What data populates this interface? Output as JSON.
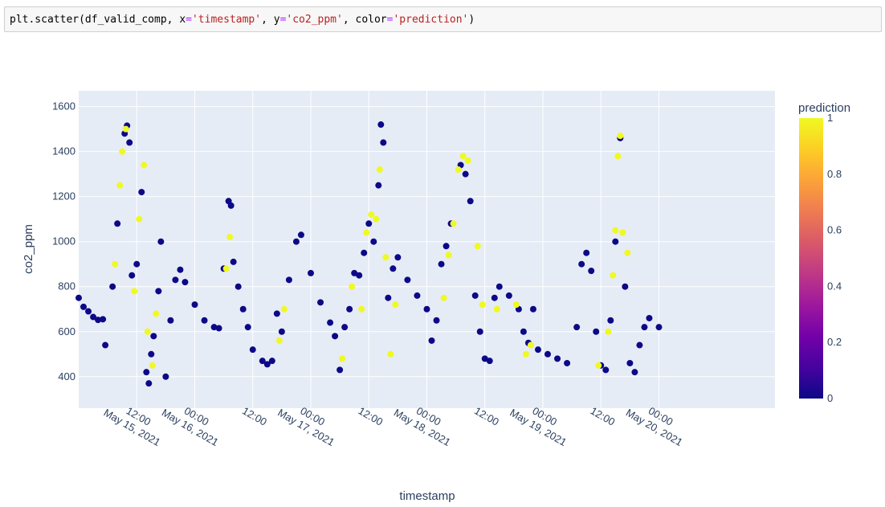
{
  "code_cell": {
    "tokens": [
      {
        "t": "plt.scatter(df_valid_comp, x",
        "c": "plain"
      },
      {
        "t": "=",
        "c": "op"
      },
      {
        "t": "'timestamp'",
        "c": "str"
      },
      {
        "t": ", y",
        "c": "plain"
      },
      {
        "t": "=",
        "c": "op"
      },
      {
        "t": "'co2_ppm'",
        "c": "str"
      },
      {
        "t": ", color",
        "c": "plain"
      },
      {
        "t": "=",
        "c": "op"
      },
      {
        "t": "'prediction'",
        "c": "str"
      },
      {
        "t": ")",
        "c": "plain"
      }
    ]
  },
  "chart_data": {
    "type": "scatter",
    "xlabel": "timestamp",
    "ylabel": "co2_ppm",
    "xlim": [
      "2021-05-14 00:00",
      "2021-05-20 00:00"
    ],
    "ylim": [
      260,
      1670
    ],
    "y_ticks": [
      400,
      600,
      800,
      1000,
      1200,
      1400,
      1600
    ],
    "x_ticks": [
      {
        "x": "2021-05-14 12:00",
        "line1": "12:00",
        "line2": "May 15, 2021"
      },
      {
        "x": "2021-05-15 00:00",
        "line1": "00:00",
        "line2": "May 16, 2021"
      },
      {
        "x": "2021-05-15 12:00",
        "line1": "12:00",
        "line2": ""
      },
      {
        "x": "2021-05-16 00:00",
        "line1": "00:00",
        "line2": "May 17, 2021"
      },
      {
        "x": "2021-05-16 12:00",
        "line1": "12:00",
        "line2": ""
      },
      {
        "x": "2021-05-17 00:00",
        "line1": "00:00",
        "line2": "May 18, 2021"
      },
      {
        "x": "2021-05-17 12:00",
        "line1": "12:00",
        "line2": ""
      },
      {
        "x": "2021-05-18 00:00",
        "line1": "00:00",
        "line2": "May 19, 2021"
      },
      {
        "x": "2021-05-18 12:00",
        "line1": "12:00",
        "line2": ""
      },
      {
        "x": "2021-05-19 00:00",
        "line1": "00:00",
        "line2": "May 20, 2021"
      }
    ],
    "grid": true,
    "colorbar": {
      "title": "prediction",
      "range": [
        0,
        1
      ],
      "ticks": [
        "0",
        "0.2",
        "0.4",
        "0.6",
        "0.8",
        "1"
      ],
      "low_color": "#0d0887",
      "high_color": "#f0f921"
    },
    "colors": {
      "plot_bg": "#e5ecf6",
      "grid": "#ffffff",
      "text": "#2a3f5f",
      "prediction_0": "#0d0887",
      "prediction_1": "#f0f921"
    },
    "series": [
      {
        "prediction": 0,
        "points": [
          [
            "2021-05-14 00:00",
            750
          ],
          [
            "2021-05-14 01:00",
            710
          ],
          [
            "2021-05-14 02:00",
            690
          ],
          [
            "2021-05-14 03:00",
            665
          ],
          [
            "2021-05-14 04:00",
            652
          ],
          [
            "2021-05-14 05:00",
            655
          ],
          [
            "2021-05-14 05:30",
            540
          ],
          [
            "2021-05-14 07:00",
            800
          ],
          [
            "2021-05-14 08:00",
            1080
          ],
          [
            "2021-05-14 09:30",
            1480
          ],
          [
            "2021-05-14 10:00",
            1515
          ],
          [
            "2021-05-14 10:30",
            1440
          ],
          [
            "2021-05-14 11:00",
            850
          ],
          [
            "2021-05-14 12:00",
            900
          ],
          [
            "2021-05-14 13:00",
            1220
          ],
          [
            "2021-05-14 14:00",
            420
          ],
          [
            "2021-05-14 14:30",
            370
          ],
          [
            "2021-05-14 15:00",
            500
          ],
          [
            "2021-05-14 15:30",
            580
          ],
          [
            "2021-05-14 16:30",
            780
          ],
          [
            "2021-05-14 17:00",
            1000
          ],
          [
            "2021-05-14 18:00",
            400
          ],
          [
            "2021-05-14 19:00",
            650
          ],
          [
            "2021-05-14 20:00",
            830
          ],
          [
            "2021-05-14 21:00",
            875
          ],
          [
            "2021-05-14 22:00",
            820
          ],
          [
            "2021-05-15 00:00",
            720
          ],
          [
            "2021-05-15 02:00",
            650
          ],
          [
            "2021-05-15 04:00",
            620
          ],
          [
            "2021-05-15 05:00",
            615
          ],
          [
            "2021-05-15 06:00",
            880
          ],
          [
            "2021-05-15 07:00",
            1180
          ],
          [
            "2021-05-15 07:30",
            1160
          ],
          [
            "2021-05-15 08:00",
            910
          ],
          [
            "2021-05-15 09:00",
            800
          ],
          [
            "2021-05-15 10:00",
            700
          ],
          [
            "2021-05-15 11:00",
            620
          ],
          [
            "2021-05-15 12:00",
            520
          ],
          [
            "2021-05-15 14:00",
            470
          ],
          [
            "2021-05-15 15:00",
            455
          ],
          [
            "2021-05-15 16:00",
            470
          ],
          [
            "2021-05-15 17:00",
            680
          ],
          [
            "2021-05-15 18:00",
            600
          ],
          [
            "2021-05-15 19:30",
            830
          ],
          [
            "2021-05-15 21:00",
            1000
          ],
          [
            "2021-05-15 22:00",
            1030
          ],
          [
            "2021-05-16 00:00",
            860
          ],
          [
            "2021-05-16 02:00",
            730
          ],
          [
            "2021-05-16 04:00",
            640
          ],
          [
            "2021-05-16 05:00",
            580
          ],
          [
            "2021-05-16 06:00",
            430
          ],
          [
            "2021-05-16 07:00",
            620
          ],
          [
            "2021-05-16 08:00",
            700
          ],
          [
            "2021-05-16 09:00",
            860
          ],
          [
            "2021-05-16 10:00",
            850
          ],
          [
            "2021-05-16 11:00",
            950
          ],
          [
            "2021-05-16 12:00",
            1080
          ],
          [
            "2021-05-16 13:00",
            1000
          ],
          [
            "2021-05-16 14:00",
            1250
          ],
          [
            "2021-05-16 14:30",
            1520
          ],
          [
            "2021-05-16 15:00",
            1440
          ],
          [
            "2021-05-16 16:00",
            750
          ],
          [
            "2021-05-16 17:00",
            880
          ],
          [
            "2021-05-16 18:00",
            930
          ],
          [
            "2021-05-16 20:00",
            830
          ],
          [
            "2021-05-16 22:00",
            760
          ],
          [
            "2021-05-17 00:00",
            700
          ],
          [
            "2021-05-17 01:00",
            560
          ],
          [
            "2021-05-17 02:00",
            650
          ],
          [
            "2021-05-17 03:00",
            900
          ],
          [
            "2021-05-17 04:00",
            980
          ],
          [
            "2021-05-17 05:00",
            1080
          ],
          [
            "2021-05-17 07:00",
            1340
          ],
          [
            "2021-05-17 08:00",
            1300
          ],
          [
            "2021-05-17 09:00",
            1180
          ],
          [
            "2021-05-17 10:00",
            760
          ],
          [
            "2021-05-17 11:00",
            600
          ],
          [
            "2021-05-17 12:00",
            480
          ],
          [
            "2021-05-17 13:00",
            470
          ],
          [
            "2021-05-17 14:00",
            750
          ],
          [
            "2021-05-17 15:00",
            800
          ],
          [
            "2021-05-17 17:00",
            760
          ],
          [
            "2021-05-17 19:00",
            700
          ],
          [
            "2021-05-17 20:00",
            600
          ],
          [
            "2021-05-17 21:00",
            550
          ],
          [
            "2021-05-17 22:00",
            700
          ],
          [
            "2021-05-17 23:00",
            520
          ],
          [
            "2021-05-18 01:00",
            500
          ],
          [
            "2021-05-18 03:00",
            480
          ],
          [
            "2021-05-18 05:00",
            460
          ],
          [
            "2021-05-18 07:00",
            620
          ],
          [
            "2021-05-18 08:00",
            900
          ],
          [
            "2021-05-18 09:00",
            950
          ],
          [
            "2021-05-18 10:00",
            870
          ],
          [
            "2021-05-18 11:00",
            600
          ],
          [
            "2021-05-18 12:00",
            450
          ],
          [
            "2021-05-18 13:00",
            430
          ],
          [
            "2021-05-18 14:00",
            650
          ],
          [
            "2021-05-18 15:00",
            1000
          ],
          [
            "2021-05-18 16:00",
            1460
          ],
          [
            "2021-05-18 17:00",
            800
          ],
          [
            "2021-05-18 18:00",
            460
          ],
          [
            "2021-05-18 19:00",
            420
          ],
          [
            "2021-05-18 20:00",
            540
          ],
          [
            "2021-05-18 21:00",
            620
          ],
          [
            "2021-05-18 22:00",
            660
          ],
          [
            "2021-05-19 00:00",
            620
          ]
        ]
      },
      {
        "prediction": 1,
        "points": [
          [
            "2021-05-14 07:30",
            900
          ],
          [
            "2021-05-14 08:30",
            1250
          ],
          [
            "2021-05-14 09:00",
            1400
          ],
          [
            "2021-05-14 09:45",
            1500
          ],
          [
            "2021-05-14 11:30",
            780
          ],
          [
            "2021-05-14 12:30",
            1100
          ],
          [
            "2021-05-14 13:30",
            1340
          ],
          [
            "2021-05-14 14:15",
            600
          ],
          [
            "2021-05-14 15:15",
            450
          ],
          [
            "2021-05-14 16:00",
            680
          ],
          [
            "2021-05-15 06:30",
            880
          ],
          [
            "2021-05-15 07:15",
            1020
          ],
          [
            "2021-05-15 17:30",
            560
          ],
          [
            "2021-05-15 18:30",
            700
          ],
          [
            "2021-05-16 06:30",
            480
          ],
          [
            "2021-05-16 08:30",
            800
          ],
          [
            "2021-05-16 10:30",
            700
          ],
          [
            "2021-05-16 11:30",
            1040
          ],
          [
            "2021-05-16 12:30",
            1120
          ],
          [
            "2021-05-16 13:30",
            1100
          ],
          [
            "2021-05-16 14:15",
            1320
          ],
          [
            "2021-05-16 15:30",
            930
          ],
          [
            "2021-05-16 16:30",
            500
          ],
          [
            "2021-05-16 17:30",
            720
          ],
          [
            "2021-05-17 03:30",
            750
          ],
          [
            "2021-05-17 04:30",
            940
          ],
          [
            "2021-05-17 05:30",
            1080
          ],
          [
            "2021-05-17 06:30",
            1320
          ],
          [
            "2021-05-17 07:30",
            1380
          ],
          [
            "2021-05-17 08:30",
            1360
          ],
          [
            "2021-05-17 10:30",
            980
          ],
          [
            "2021-05-17 11:30",
            720
          ],
          [
            "2021-05-17 14:30",
            700
          ],
          [
            "2021-05-17 18:30",
            720
          ],
          [
            "2021-05-17 20:30",
            500
          ],
          [
            "2021-05-17 21:30",
            540
          ],
          [
            "2021-05-18 11:30",
            450
          ],
          [
            "2021-05-18 13:30",
            600
          ],
          [
            "2021-05-18 14:30",
            850
          ],
          [
            "2021-05-18 15:00",
            1050
          ],
          [
            "2021-05-18 15:30",
            1380
          ],
          [
            "2021-05-18 16:00",
            1470
          ],
          [
            "2021-05-18 16:30",
            1040
          ],
          [
            "2021-05-18 17:30",
            950
          ]
        ]
      }
    ]
  }
}
